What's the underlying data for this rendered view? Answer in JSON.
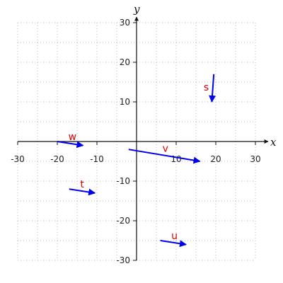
{
  "chart_data": {
    "type": "vector-field",
    "xlabel": "x",
    "ylabel": "y",
    "xlim": [
      -30,
      30
    ],
    "ylim": [
      -30,
      30
    ],
    "xticks": [
      -30,
      -20,
      -10,
      10,
      20,
      30
    ],
    "yticks": [
      -30,
      -20,
      -10,
      10,
      20,
      30
    ],
    "grid_step": 5,
    "grid": true,
    "vectors": [
      {
        "label": "s",
        "x1": 19.5,
        "y1": 17,
        "x2": 19,
        "y2": 10
      },
      {
        "label": "v",
        "x1": -2,
        "y1": -2,
        "x2": 16,
        "y2": -5
      },
      {
        "label": "w",
        "x1": -20,
        "y1": 0,
        "x2": -13.5,
        "y2": -1
      },
      {
        "label": "t",
        "x1": -17,
        "y1": -12,
        "x2": -10.5,
        "y2": -13
      },
      {
        "label": "u",
        "x1": 6,
        "y1": -25,
        "x2": 12.5,
        "y2": -26
      }
    ],
    "vector_color": "#0000ee",
    "label_color": "#dd0000",
    "axis_color": "#111111",
    "grid_color": "#bbbbbb"
  }
}
